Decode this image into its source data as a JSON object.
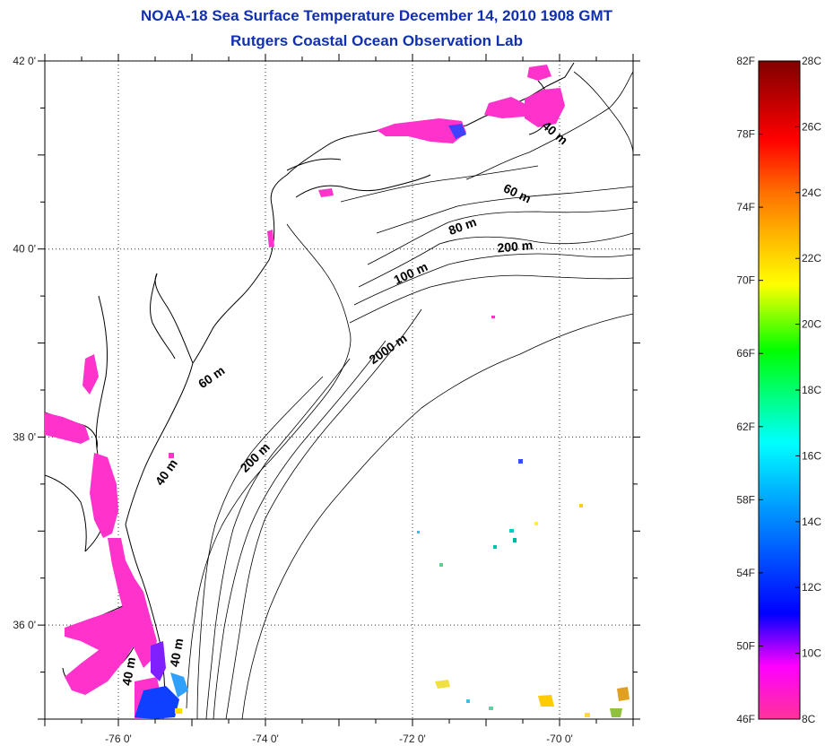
{
  "title": {
    "line1": "NOAA-18 Sea Surface Temperature December 14, 2010 1908 GMT",
    "line2": "Rutgers Coastal Ocean Observation Lab"
  },
  "map": {
    "lon_range": [
      -77,
      -69
    ],
    "lat_range": [
      35,
      42
    ],
    "lat_ticks": [
      {
        "value": 42,
        "label": "42 0'"
      },
      {
        "value": 40,
        "label": "40 0'"
      },
      {
        "value": 38,
        "label": "38 0'"
      },
      {
        "value": 36,
        "label": "36 0'"
      }
    ],
    "lon_ticks": [
      {
        "value": -76,
        "label": "-76 0'"
      },
      {
        "value": -74,
        "label": "-74 0'"
      },
      {
        "value": -72,
        "label": "-72 0'"
      },
      {
        "value": -70,
        "label": "-70 0'"
      }
    ],
    "contour_labels": [
      {
        "text": "40 m",
        "lon": -70.1,
        "lat": 41.2,
        "angle": 40
      },
      {
        "text": "60 m",
        "lon": -70.6,
        "lat": 40.55,
        "angle": 25
      },
      {
        "text": "80 m",
        "lon": -71.3,
        "lat": 40.2,
        "angle": -20
      },
      {
        "text": "200 m",
        "lon": -70.6,
        "lat": 39.98,
        "angle": -5
      },
      {
        "text": "100 m",
        "lon": -72.0,
        "lat": 39.7,
        "angle": -25
      },
      {
        "text": "2000 m",
        "lon": -72.3,
        "lat": 38.9,
        "angle": -35
      },
      {
        "text": "60 m",
        "lon": -74.7,
        "lat": 38.6,
        "angle": -35
      },
      {
        "text": "200 m",
        "lon": -74.1,
        "lat": 37.75,
        "angle": -45
      },
      {
        "text": "40 m",
        "lon": -75.3,
        "lat": 37.6,
        "angle": -55
      },
      {
        "text": "40 m",
        "lon": -75.8,
        "lat": 35.5,
        "angle": -80
      },
      {
        "text": "40 m",
        "lon": -75.15,
        "lat": 35.7,
        "angle": -80
      }
    ]
  },
  "colorbar": {
    "f_labels": [
      "82F",
      "78F",
      "74F",
      "70F",
      "66F",
      "62F",
      "58F",
      "54F",
      "50F",
      "46F"
    ],
    "c_labels": [
      "28C",
      "26C",
      "24C",
      "22C",
      "20C",
      "18C",
      "16C",
      "14C",
      "12C",
      "10C",
      "8C"
    ],
    "colors": {
      "top": "#800000",
      "red": "#ff0000",
      "orange": "#ff8000",
      "yellow": "#ffff00",
      "green": "#00ff00",
      "cyan": "#00ffff",
      "blue": "#0000ff",
      "purple": "#8000ff",
      "magenta": "#ff00ff",
      "pink": "#ff3399"
    }
  }
}
